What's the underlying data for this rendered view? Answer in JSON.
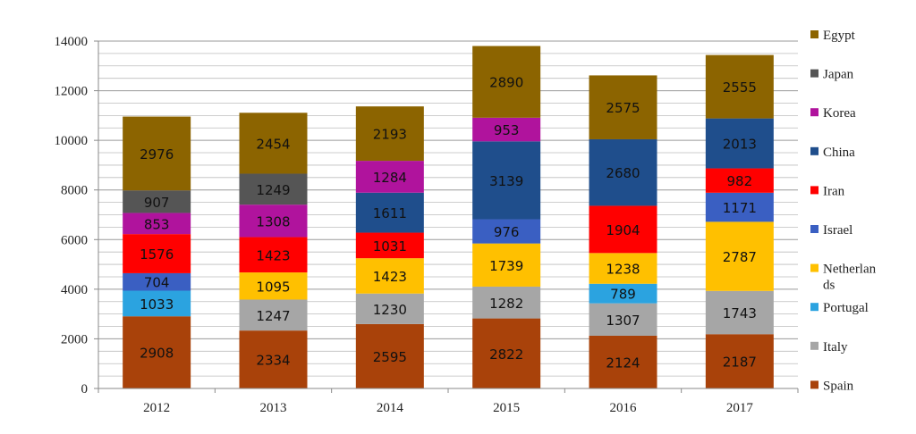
{
  "chart_data": {
    "type": "bar",
    "stacked": true,
    "categories": [
      "2012",
      "2013",
      "2014",
      "2015",
      "2016",
      "2017"
    ],
    "ylim": [
      0,
      14000
    ],
    "y_ticks": [
      0,
      2000,
      4000,
      6000,
      8000,
      10000,
      12000,
      14000
    ],
    "y_tick_labels": [
      "0",
      "2000",
      "4000",
      "6000",
      "8000",
      "10000",
      "12000",
      "14000"
    ],
    "minor_gridline_step": 500,
    "grid": true,
    "legend_position": "right",
    "series": [
      {
        "name": "Spain",
        "color": "#A9420A",
        "values": [
          2908,
          2334,
          2595,
          2822,
          2124,
          2187
        ],
        "labels": [
          "2908",
          "2334",
          "2595",
          "2822",
          "2124",
          "2187"
        ]
      },
      {
        "name": "Italy",
        "color": "#A6A6A6",
        "values": [
          0,
          1247,
          1230,
          1282,
          1307,
          1743
        ],
        "labels": [
          "",
          "1247",
          "1230",
          "1282",
          "1307",
          "1743"
        ]
      },
      {
        "name": "Portugal",
        "color": "#2BA3E0",
        "values": [
          1033,
          0,
          0,
          0,
          789,
          0
        ],
        "labels": [
          "1033",
          "",
          "",
          "",
          "789",
          ""
        ]
      },
      {
        "name": "Netherlands",
        "color": "#FFC000",
        "values": [
          0,
          1095,
          1423,
          1739,
          1238,
          2787
        ],
        "labels": [
          "",
          "1095",
          "1423",
          "1739",
          "1238",
          "2787"
        ]
      },
      {
        "name": "Israel",
        "color": "#3A5FC2",
        "values": [
          704,
          0,
          0,
          976,
          0,
          1171
        ],
        "labels": [
          "704",
          "",
          "",
          "976",
          "",
          "1171"
        ]
      },
      {
        "name": "Iran",
        "color": "#FF0000",
        "values": [
          1576,
          1423,
          1031,
          0,
          1904,
          982
        ],
        "labels": [
          "1576",
          "1423",
          "1031",
          "",
          "1904",
          "982"
        ]
      },
      {
        "name": "China",
        "color": "#1F4E8C",
        "values": [
          0,
          0,
          1611,
          3139,
          2680,
          2013
        ],
        "labels": [
          "",
          "",
          "1611",
          "3139",
          "2680",
          "2013"
        ]
      },
      {
        "name": "Korea",
        "color": "#B0139D",
        "values": [
          853,
          1308,
          1284,
          953,
          0,
          0
        ],
        "labels": [
          "853",
          "1308",
          "1284",
          "953",
          "",
          ""
        ]
      },
      {
        "name": "Japan",
        "color": "#555555",
        "values": [
          907,
          1249,
          0,
          0,
          0,
          0
        ],
        "labels": [
          "907",
          "1249",
          "",
          "",
          "",
          ""
        ]
      },
      {
        "name": "Egypt",
        "color": "#8C6400",
        "values": [
          2976,
          2454,
          2193,
          2890,
          2575,
          2555
        ],
        "labels": [
          "2976",
          "2454",
          "2193",
          "2890",
          "2575",
          "2555"
        ]
      }
    ],
    "legend": [
      {
        "label": "Egypt",
        "color": "#8C6400"
      },
      {
        "label": "Japan",
        "color": "#555555"
      },
      {
        "label": "Korea",
        "color": "#B0139D"
      },
      {
        "label": "China",
        "color": "#1F4E8C"
      },
      {
        "label": "Iran",
        "color": "#FF0000"
      },
      {
        "label": "Israel",
        "color": "#3A5FC2"
      },
      {
        "label": "Netherlan",
        "label_line2": "ds",
        "color": "#FFC000"
      },
      {
        "label": "Portugal",
        "color": "#2BA3E0"
      },
      {
        "label": "Italy",
        "color": "#A6A6A6"
      },
      {
        "label": "Spain",
        "color": "#A9420A"
      }
    ]
  }
}
